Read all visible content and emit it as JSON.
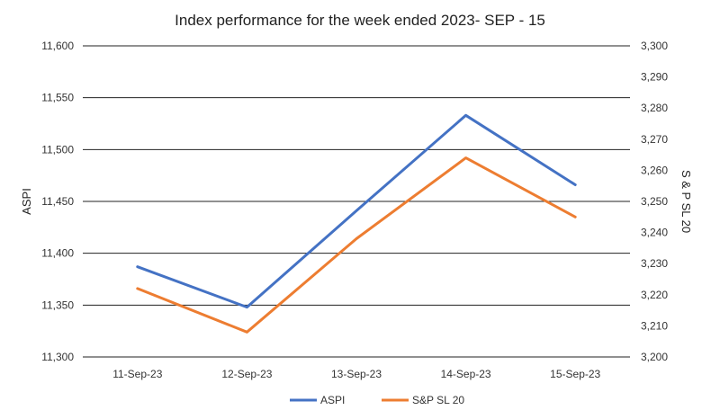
{
  "chart_data": {
    "type": "line",
    "title": "Index performance for the week ended 2023- SEP - 15",
    "categories": [
      "11-Sep-23",
      "12-Sep-23",
      "13-Sep-23",
      "14-Sep-23",
      "15-Sep-23"
    ],
    "y_left": {
      "label": "ASPI",
      "range": [
        11300,
        11600
      ],
      "ticks": [
        "11,300",
        "11,350",
        "11,400",
        "11,450",
        "11,500",
        "11,550",
        "11,600"
      ],
      "tick_values": [
        11300,
        11350,
        11400,
        11450,
        11500,
        11550,
        11600
      ]
    },
    "y_right": {
      "label": "S & P SL 20",
      "range": [
        3200,
        3300
      ],
      "ticks": [
        "3,200",
        "3,210",
        "3,220",
        "3,230",
        "3,240",
        "3,250",
        "3,260",
        "3,270",
        "3,280",
        "3,290",
        "3,300"
      ],
      "tick_values": [
        3200,
        3210,
        3220,
        3230,
        3240,
        3250,
        3260,
        3270,
        3280,
        3290,
        3300
      ]
    },
    "series": [
      {
        "name": "ASPI",
        "axis": "left",
        "color": "#4472c4",
        "values": [
          11387,
          11348,
          11441,
          11533,
          11466
        ]
      },
      {
        "name": "S&P SL 20",
        "axis": "right",
        "color": "#ed7d31",
        "values": [
          3222,
          3208,
          3238,
          3264,
          3245
        ]
      }
    ],
    "grid": true,
    "legend_position": "bottom"
  }
}
